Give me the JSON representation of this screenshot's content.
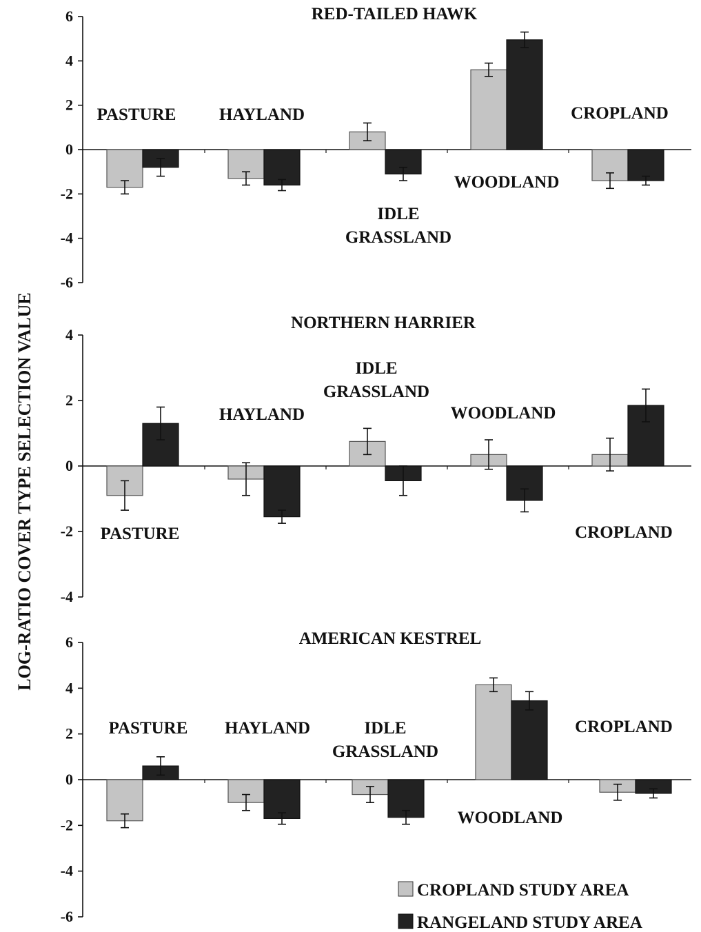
{
  "ylabel": "LOG-RATIO COVER TYPE SELECTION VALUE",
  "legend": [
    {
      "label": "CROPLAND STUDY AREA",
      "color": "#c4c4c4"
    },
    {
      "label": "RANGELAND STUDY AREA",
      "color": "#222222"
    }
  ],
  "chart_data": [
    {
      "type": "bar",
      "title": "RED-TAILED HAWK",
      "categories": [
        "PASTURE",
        "HAYLAND",
        "IDLE GRASSLAND",
        "WOODLAND",
        "CROPLAND"
      ],
      "category_labels": [
        [
          "PASTURE"
        ],
        [
          "HAYLAND"
        ],
        [
          "IDLE",
          "GRASSLAND"
        ],
        [
          "WOODLAND"
        ],
        [
          "CROPLAND"
        ]
      ],
      "ylim": [
        -6,
        6
      ],
      "yticks": [
        "6",
        "4",
        "2",
        "0",
        "-2",
        "-4",
        "-6"
      ],
      "series": [
        {
          "name": "CROPLAND STUDY AREA",
          "values": [
            -1.7,
            -1.3,
            0.8,
            3.6,
            -1.4
          ],
          "errors": [
            0.3,
            0.3,
            0.4,
            0.3,
            0.35
          ]
        },
        {
          "name": "RANGELAND STUDY AREA",
          "values": [
            -0.8,
            -1.6,
            -1.1,
            4.95,
            -1.4
          ],
          "errors": [
            0.4,
            0.25,
            0.3,
            0.35,
            0.2
          ]
        }
      ]
    },
    {
      "type": "bar",
      "title": "NORTHERN HARRIER",
      "categories": [
        "PASTURE",
        "HAYLAND",
        "IDLE GRASSLAND",
        "WOODLAND",
        "CROPLAND"
      ],
      "category_labels": [
        [
          "PASTURE"
        ],
        [
          "HAYLAND"
        ],
        [
          "IDLE",
          "GRASSLAND"
        ],
        [
          "WOODLAND"
        ],
        [
          "CROPLAND"
        ]
      ],
      "ylim": [
        -4,
        4
      ],
      "yticks": [
        "4",
        "2",
        "0",
        "-2",
        "-4"
      ],
      "series": [
        {
          "name": "CROPLAND STUDY AREA",
          "values": [
            -0.9,
            -0.4,
            0.75,
            0.35,
            0.35
          ],
          "errors": [
            0.45,
            0.5,
            0.4,
            0.45,
            0.5
          ]
        },
        {
          "name": "RANGELAND STUDY AREA",
          "values": [
            1.3,
            -1.55,
            -0.45,
            -1.05,
            1.85
          ],
          "errors": [
            0.5,
            0.2,
            0.45,
            0.35,
            0.5
          ]
        }
      ]
    },
    {
      "type": "bar",
      "title": "AMERICAN KESTREL",
      "categories": [
        "PASTURE",
        "HAYLAND",
        "IDLE GRASSLAND",
        "WOODLAND",
        "CROPLAND"
      ],
      "category_labels": [
        [
          "PASTURE"
        ],
        [
          "HAYLAND"
        ],
        [
          "IDLE",
          "GRASSLAND"
        ],
        [
          "WOODLAND"
        ],
        [
          "CROPLAND"
        ]
      ],
      "ylim": [
        -6,
        6
      ],
      "yticks": [
        "6",
        "4",
        "2",
        "0",
        "-2",
        "-4",
        "-6"
      ],
      "series": [
        {
          "name": "CROPLAND STUDY AREA",
          "values": [
            -1.8,
            -1.0,
            -0.65,
            4.15,
            -0.55
          ],
          "errors": [
            0.3,
            0.35,
            0.35,
            0.3,
            0.35
          ]
        },
        {
          "name": "RANGELAND STUDY AREA",
          "values": [
            0.6,
            -1.7,
            -1.65,
            3.45,
            -0.6
          ],
          "errors": [
            0.4,
            0.25,
            0.3,
            0.4,
            0.2
          ]
        }
      ]
    }
  ]
}
